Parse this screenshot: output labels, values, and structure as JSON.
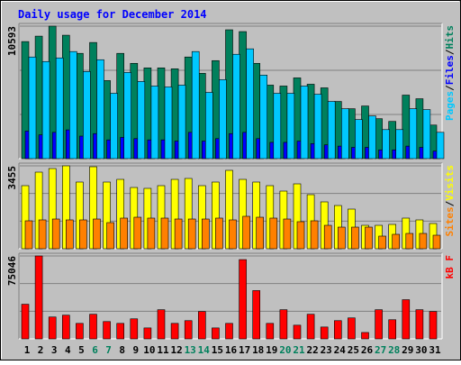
{
  "chart_data": [
    {
      "type": "bar",
      "title": "Daily usage for December 2014",
      "ylim": [
        0,
        10593
      ],
      "yticks": [
        10593
      ],
      "gridlines": [
        3531,
        7062
      ],
      "legend_separator": "/",
      "series": [
        {
          "name": "Pages",
          "color": "#00C8FF",
          "values": [
            8126,
            7763,
            8053,
            8561,
            6965,
            7908,
            5224,
            6892,
            6167,
            5804,
            5731,
            5877,
            8561,
            5296,
            6312,
            8343,
            8779,
            6675,
            5224,
            5224,
            5804,
            5151,
            4571,
            3990,
            3120,
            3410,
            2322,
            2322,
            3990,
            3918,
            2104
          ]
        },
        {
          "name": "Files",
          "color": "#0000FF",
          "values": [
            2200,
            1900,
            2100,
            2300,
            1800,
            2000,
            1500,
            1700,
            1600,
            1500,
            1500,
            1400,
            2100,
            1400,
            1600,
            2000,
            2100,
            1600,
            1300,
            1300,
            1400,
            1200,
            1100,
            1000,
            900,
            900,
            700,
            700,
            1000,
            900,
            600
          ]
        },
        {
          "name": "Hits",
          "color": "#00805C",
          "values": [
            9359,
            9794,
            10593,
            9867,
            8416,
            9286,
            6239,
            8416,
            7618,
            7255,
            7255,
            7182,
            8126,
            6820,
            7835,
            10302,
            10157,
            7618,
            5877,
            5804,
            6457,
            5949,
            5659,
            4571,
            3990,
            4208,
            3192,
            2975,
            5079,
            4788,
            2684
          ]
        }
      ]
    },
    {
      "type": "bar",
      "ylim": [
        0,
        3455
      ],
      "yticks": [
        3455
      ],
      "gridlines": [
        1152,
        2303
      ],
      "legend_separator": "/",
      "series": [
        {
          "name": "Sites",
          "color": "#FF8000",
          "values": [
            1164,
            1202,
            1239,
            1202,
            1202,
            1239,
            1089,
            1277,
            1314,
            1277,
            1277,
            1239,
            1239,
            1239,
            1277,
            1202,
            1352,
            1314,
            1277,
            1239,
            1127,
            1164,
            976,
            901,
            901,
            901,
            526,
            601,
            638,
            638,
            563
          ]
        },
        {
          "name": "Visits",
          "color": "#FFFF00",
          "values": [
            2629,
            3192,
            3342,
            3455,
            2779,
            3417,
            2779,
            2891,
            2553,
            2516,
            2629,
            2891,
            2929,
            2629,
            2779,
            3267,
            2891,
            2779,
            2629,
            2403,
            2704,
            2253,
            1953,
            1802,
            1652,
            976,
            976,
            1014,
            1277,
            1202,
            1051
          ]
        }
      ]
    },
    {
      "type": "bar",
      "ylim": [
        0,
        75046
      ],
      "yticks": [
        75046
      ],
      "gridlines": [
        25015,
        50031
      ],
      "categories": [
        "1",
        "2",
        "3",
        "4",
        "5",
        "6",
        "7",
        "8",
        "9",
        "10",
        "11",
        "12",
        "13",
        "14",
        "15",
        "16",
        "17",
        "18",
        "19",
        "20",
        "21",
        "22",
        "23",
        "24",
        "25",
        "26",
        "27",
        "28",
        "29",
        "30",
        "31"
      ],
      "category_colors": [
        "#000000",
        "#000000",
        "#000000",
        "#000000",
        "#000000",
        "#00805C",
        "#00805C",
        "#000000",
        "#000000",
        "#000000",
        "#000000",
        "#000000",
        "#00805C",
        "#00805C",
        "#000000",
        "#000000",
        "#000000",
        "#000000",
        "#000000",
        "#00805C",
        "#00805C",
        "#000000",
        "#000000",
        "#000000",
        "#000000",
        "#000000",
        "#00805C",
        "#00805C",
        "#000000",
        "#000000",
        "#000000"
      ],
      "series": [
        {
          "name": "kB F",
          "color": "#FF0000",
          "values": [
            31339,
            75046,
            19793,
            21442,
            14020,
            22267,
            15669,
            14020,
            18143,
            9896,
            26390,
            14020,
            16494,
            24741,
            9896,
            14020,
            71749,
            43709,
            14020,
            26390,
            12371,
            22267,
            10721,
            16494,
            18968,
            5773,
            26390,
            17319,
            35462,
            26390,
            24741
          ]
        }
      ]
    }
  ]
}
